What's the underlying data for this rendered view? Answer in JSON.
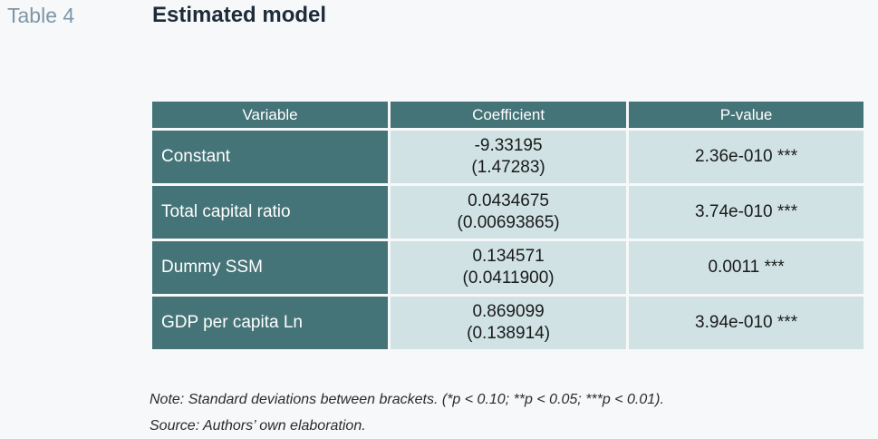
{
  "header": {
    "table_number": "Table 4",
    "title": "Estimated model"
  },
  "table": {
    "columns": [
      "Variable",
      "Coefficient",
      "P-value"
    ],
    "rows": [
      {
        "variable": "Constant",
        "coefficient": "-9.33195",
        "std_dev": "(1.47283)",
        "p_value": "2.36e-010 ***"
      },
      {
        "variable": "Total capital ratio",
        "coefficient": "0.0434675",
        "std_dev": "(0.00693865)",
        "p_value": "3.74e-010 ***"
      },
      {
        "variable": "Dummy SSM",
        "coefficient": "0.134571",
        "std_dev": "(0.0411900)",
        "p_value": "0.0011 ***"
      },
      {
        "variable": "GDP per capita Ln",
        "coefficient": "0.869099",
        "std_dev": "(0.138914)",
        "p_value": "3.94e-010 ***"
      }
    ]
  },
  "notes": {
    "note": "Note: Standard deviations between brackets. (*p < 0.10; **p < 0.05; ***p < 0.01).",
    "source": "Source: Authors’ own elaboration."
  },
  "colors": {
    "header_bg": "#457478",
    "cell_bg": "#d0e2e4",
    "page_bg": "#f6f8f9",
    "title_text": "#1d2b3a",
    "table_number_text": "#7f96a8"
  }
}
